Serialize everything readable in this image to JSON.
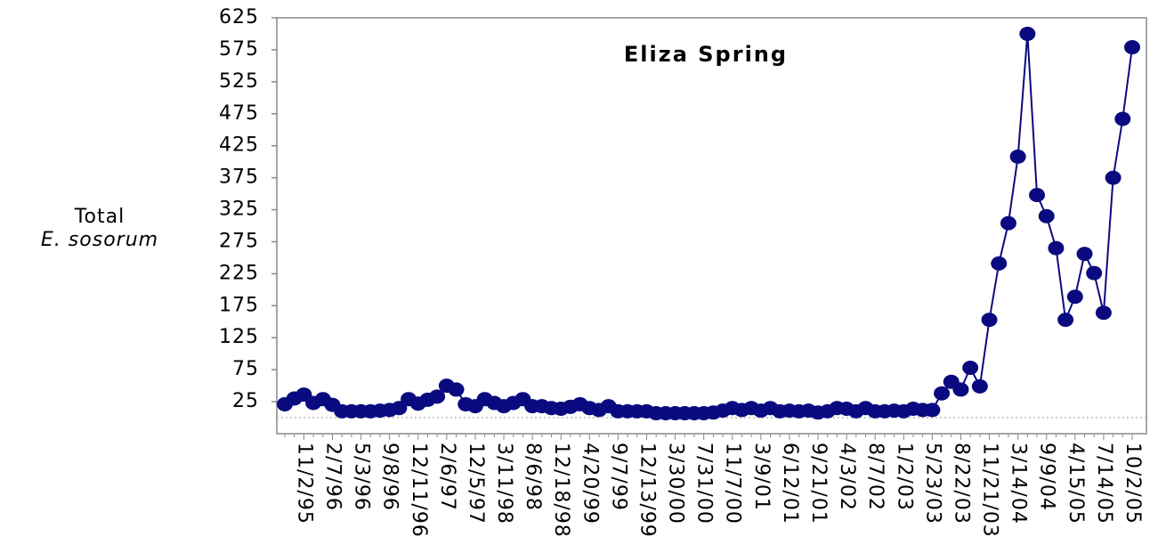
{
  "chart_data": {
    "type": "line",
    "title": "Eliza Spring",
    "ylabel": [
      "Total",
      "E. sosorum"
    ],
    "categories": [
      null,
      null,
      "11/2/95",
      null,
      null,
      "2/7/96",
      null,
      null,
      "5/3/96",
      null,
      null,
      "9/8/96",
      null,
      null,
      "12/11/96",
      null,
      null,
      "2/6/97",
      null,
      null,
      "12/5/97",
      null,
      null,
      "3/11/98",
      null,
      null,
      "8/6/98",
      null,
      null,
      "12/18/98",
      null,
      null,
      "4/20/99",
      null,
      null,
      "9/7/99",
      null,
      null,
      "12/13/99",
      null,
      null,
      "3/30/00",
      null,
      null,
      "7/31/00",
      null,
      null,
      "11/7/00",
      null,
      null,
      "3/9/01",
      null,
      null,
      "6/12/01",
      null,
      null,
      "9/21/01",
      null,
      null,
      "4/3/02",
      null,
      null,
      "8/7/02",
      null,
      null,
      "1/2/03",
      null,
      null,
      "5/23/03",
      null,
      null,
      "8/22/03",
      null,
      null,
      "11/21/03",
      null,
      null,
      "3/14/04",
      null,
      null,
      "9/9/04",
      null,
      null,
      "4/15/05",
      null,
      null,
      "7/14/05",
      null,
      null,
      "10/2/05"
    ],
    "series": [
      {
        "name": "Total E. sosorum",
        "color": "#0a0a80",
        "values": [
          21,
          30,
          36,
          23,
          29,
          20,
          10,
          10,
          10,
          10,
          11,
          12,
          15,
          29,
          22,
          28,
          33,
          50,
          44,
          21,
          18,
          29,
          23,
          18,
          23,
          29,
          18,
          18,
          15,
          14,
          17,
          21,
          15,
          12,
          18,
          10,
          10,
          10,
          10,
          7,
          7,
          7,
          7,
          7,
          7,
          8,
          11,
          15,
          12,
          15,
          11,
          15,
          10,
          11,
          10,
          11,
          8,
          10,
          15,
          14,
          10,
          15,
          10,
          10,
          11,
          10,
          14,
          12,
          12,
          38,
          56,
          44,
          78,
          49,
          153,
          241,
          304,
          408,
          600,
          348,
          315,
          265,
          153,
          189,
          256,
          226,
          164,
          375,
          467,
          579
        ]
      }
    ],
    "ylim": [
      -25,
      625
    ],
    "yticks": [
      25,
      75,
      125,
      175,
      225,
      275,
      325,
      375,
      425,
      475,
      525,
      575,
      625
    ],
    "grid": false
  }
}
